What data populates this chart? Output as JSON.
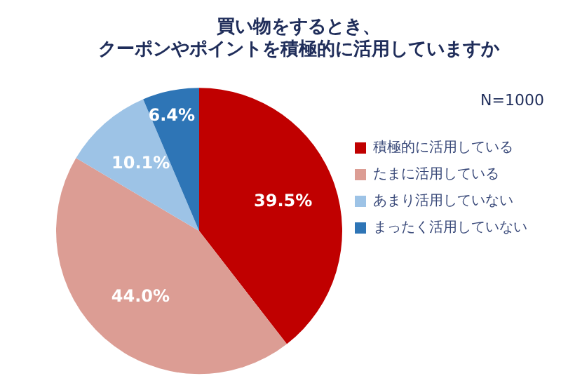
{
  "chart_data": {
    "type": "pie",
    "title": "買い物をするとき、クーポンやポイントを積極的に活用していますか",
    "annotations": [
      "N=1000"
    ],
    "categories": [
      "積極的に活用している",
      "たまに活用している",
      "あまり活用していない",
      "まったく活用していない"
    ],
    "values": [
      39.5,
      44.0,
      10.1,
      6.4
    ],
    "colors": [
      "#c00000",
      "#dc9d94",
      "#9dc3e6",
      "#2e75b6"
    ],
    "value_labels": [
      "39.5%",
      "44.0%",
      "10.1%",
      "6.4%"
    ],
    "legend": "right"
  }
}
